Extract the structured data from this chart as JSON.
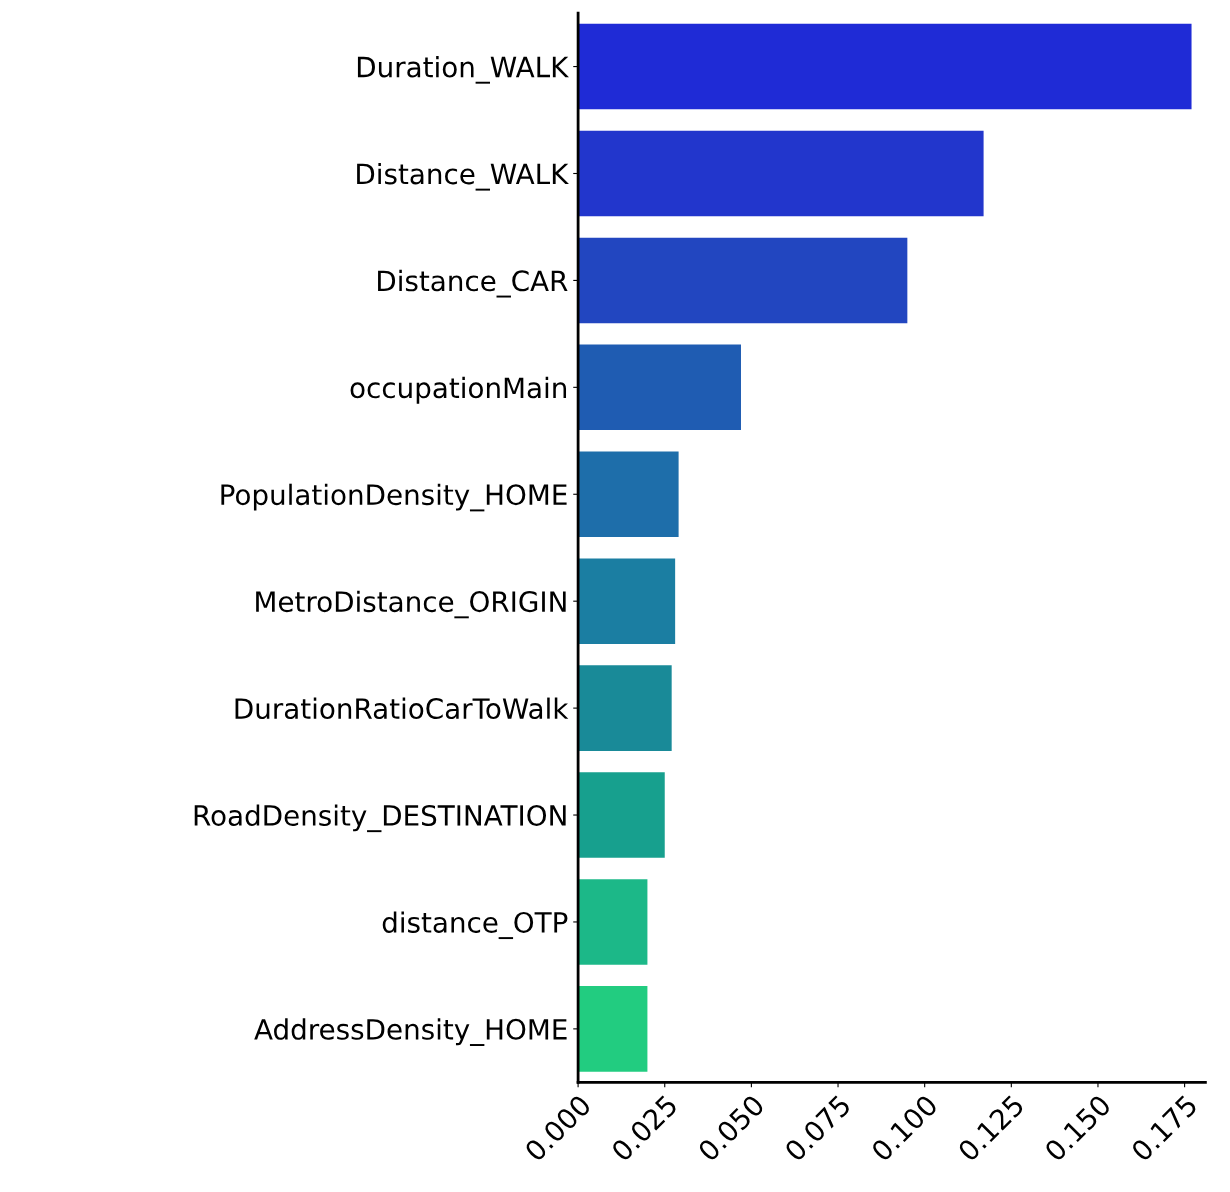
{
  "chart_data": {
    "type": "bar",
    "orientation": "horizontal",
    "categories": [
      "Duration_WALK",
      "Distance_WALK",
      "Distance_CAR",
      "occupationMain",
      "PopulationDensity_HOME",
      "MetroDistance_ORIGIN",
      "DurationRatioCarToWalk",
      "RoadDensity_DESTINATION",
      "distance_OTP",
      "AddressDensity_HOME"
    ],
    "values": [
      0.177,
      0.117,
      0.095,
      0.047,
      0.029,
      0.028,
      0.027,
      0.025,
      0.02,
      0.02
    ],
    "colors": [
      "#1f2bd6",
      "#2236cc",
      "#2246c0",
      "#1f5cb2",
      "#1e6eaa",
      "#1b7ea2",
      "#198a98",
      "#17a08e",
      "#1cb888",
      "#22cc80"
    ],
    "xlim": [
      0,
      0.181
    ],
    "xticks": [
      {
        "value": 0,
        "label": "0.000"
      },
      {
        "value": 0.025,
        "label": "0.025"
      },
      {
        "value": 0.05,
        "label": "0.050"
      },
      {
        "value": 0.075,
        "label": "0.075"
      },
      {
        "value": 0.1,
        "label": "0.100"
      },
      {
        "value": 0.125,
        "label": "0.125"
      },
      {
        "value": 0.15,
        "label": "0.150"
      },
      {
        "value": 0.175,
        "label": "0.175"
      }
    ],
    "grid": false
  }
}
